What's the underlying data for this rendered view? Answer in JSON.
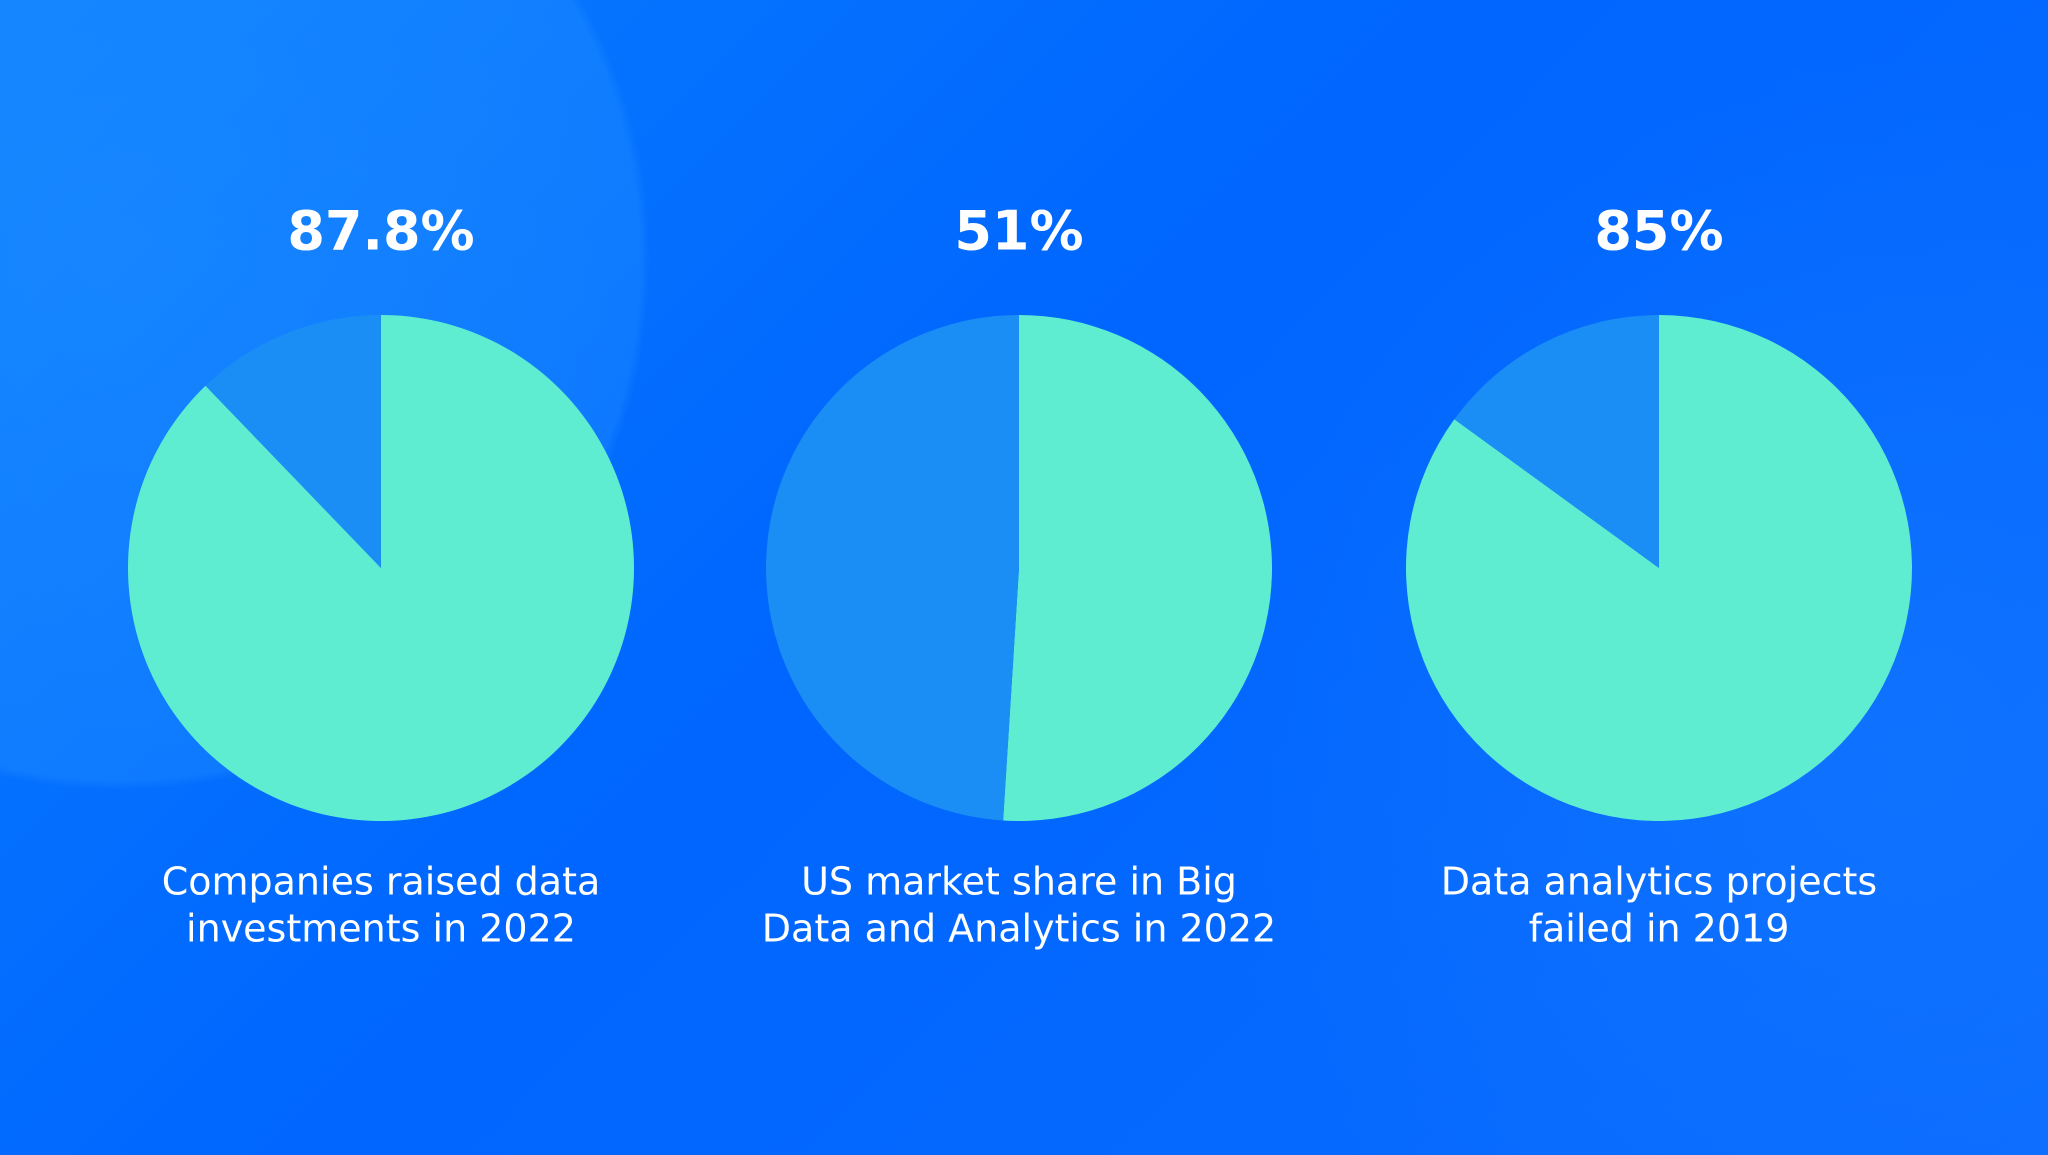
{
  "chart_data": [
    {
      "type": "pie",
      "values": [
        87.8,
        12.2
      ],
      "value_labels": [
        "87.8%",
        null
      ],
      "colors": [
        "#5eedd0",
        "#1a8ef5"
      ],
      "caption": [
        "Companies raised data",
        "investments in 2022"
      ]
    },
    {
      "type": "pie",
      "values": [
        51,
        49
      ],
      "value_labels": [
        "51%",
        null
      ],
      "colors": [
        "#5eedd0",
        "#1a8ef5"
      ],
      "caption": [
        "US market share in Big",
        "Data and Analytics in 2022"
      ]
    },
    {
      "type": "pie",
      "values": [
        85,
        15
      ],
      "value_labels": [
        "85%",
        null
      ],
      "colors": [
        "#5eedd0",
        "#1a8ef5"
      ],
      "caption": [
        "Data analytics projects",
        "failed in 2019"
      ]
    }
  ]
}
